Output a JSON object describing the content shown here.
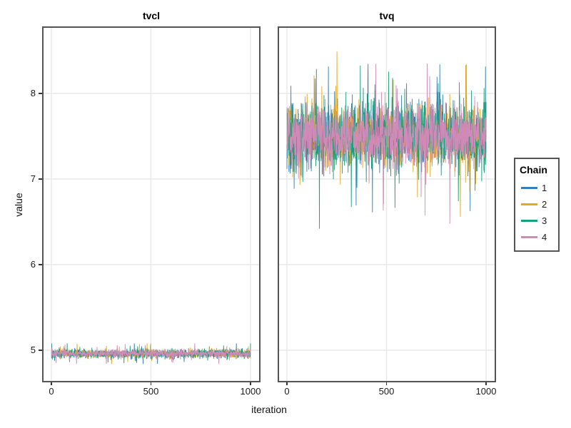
{
  "figure": {
    "background": "#ffffff",
    "panel_background": "#ffffff",
    "panel_border_color": "#545454",
    "grid_color": "#e8e8e8",
    "tick_color": "#333333",
    "text_color": "#1a1a1a"
  },
  "chart_data": {
    "type": "line",
    "subtype": "mcmc-trace-faceted",
    "title": "",
    "xlabel": "iteration",
    "ylabel": "value",
    "facets": [
      {
        "title": "tvcl",
        "mean": 4.96,
        "sd": 0.024,
        "spike_clamp": 0.12,
        "observed_min": 4.86,
        "observed_max": 5.07
      },
      {
        "title": "tvq",
        "mean": 7.5,
        "sd": 0.17,
        "spike_clamp": 1.08,
        "observed_min": 6.84,
        "observed_max": 8.58
      }
    ],
    "x": {
      "label": "iteration",
      "min": 0,
      "max": 1000,
      "tick_values": [
        0,
        500,
        1000
      ],
      "tick_labels": [
        "0",
        "500",
        "1000"
      ]
    },
    "y": {
      "label": "value",
      "range": [
        4.63,
        8.78
      ],
      "tick_values": [
        5,
        6,
        7,
        8
      ],
      "tick_labels": [
        "5",
        "6",
        "7",
        "8"
      ]
    },
    "iterations_per_chain": 1000,
    "legend": {
      "title": "Chain",
      "position": "right",
      "entries": [
        {
          "label": "1",
          "color": "#3581b5"
        },
        {
          "label": "2",
          "color": "#e5a723"
        },
        {
          "label": "3",
          "color": "#16a07c"
        },
        {
          "label": "4",
          "color": "#d08ab8"
        }
      ]
    },
    "grid": true
  }
}
